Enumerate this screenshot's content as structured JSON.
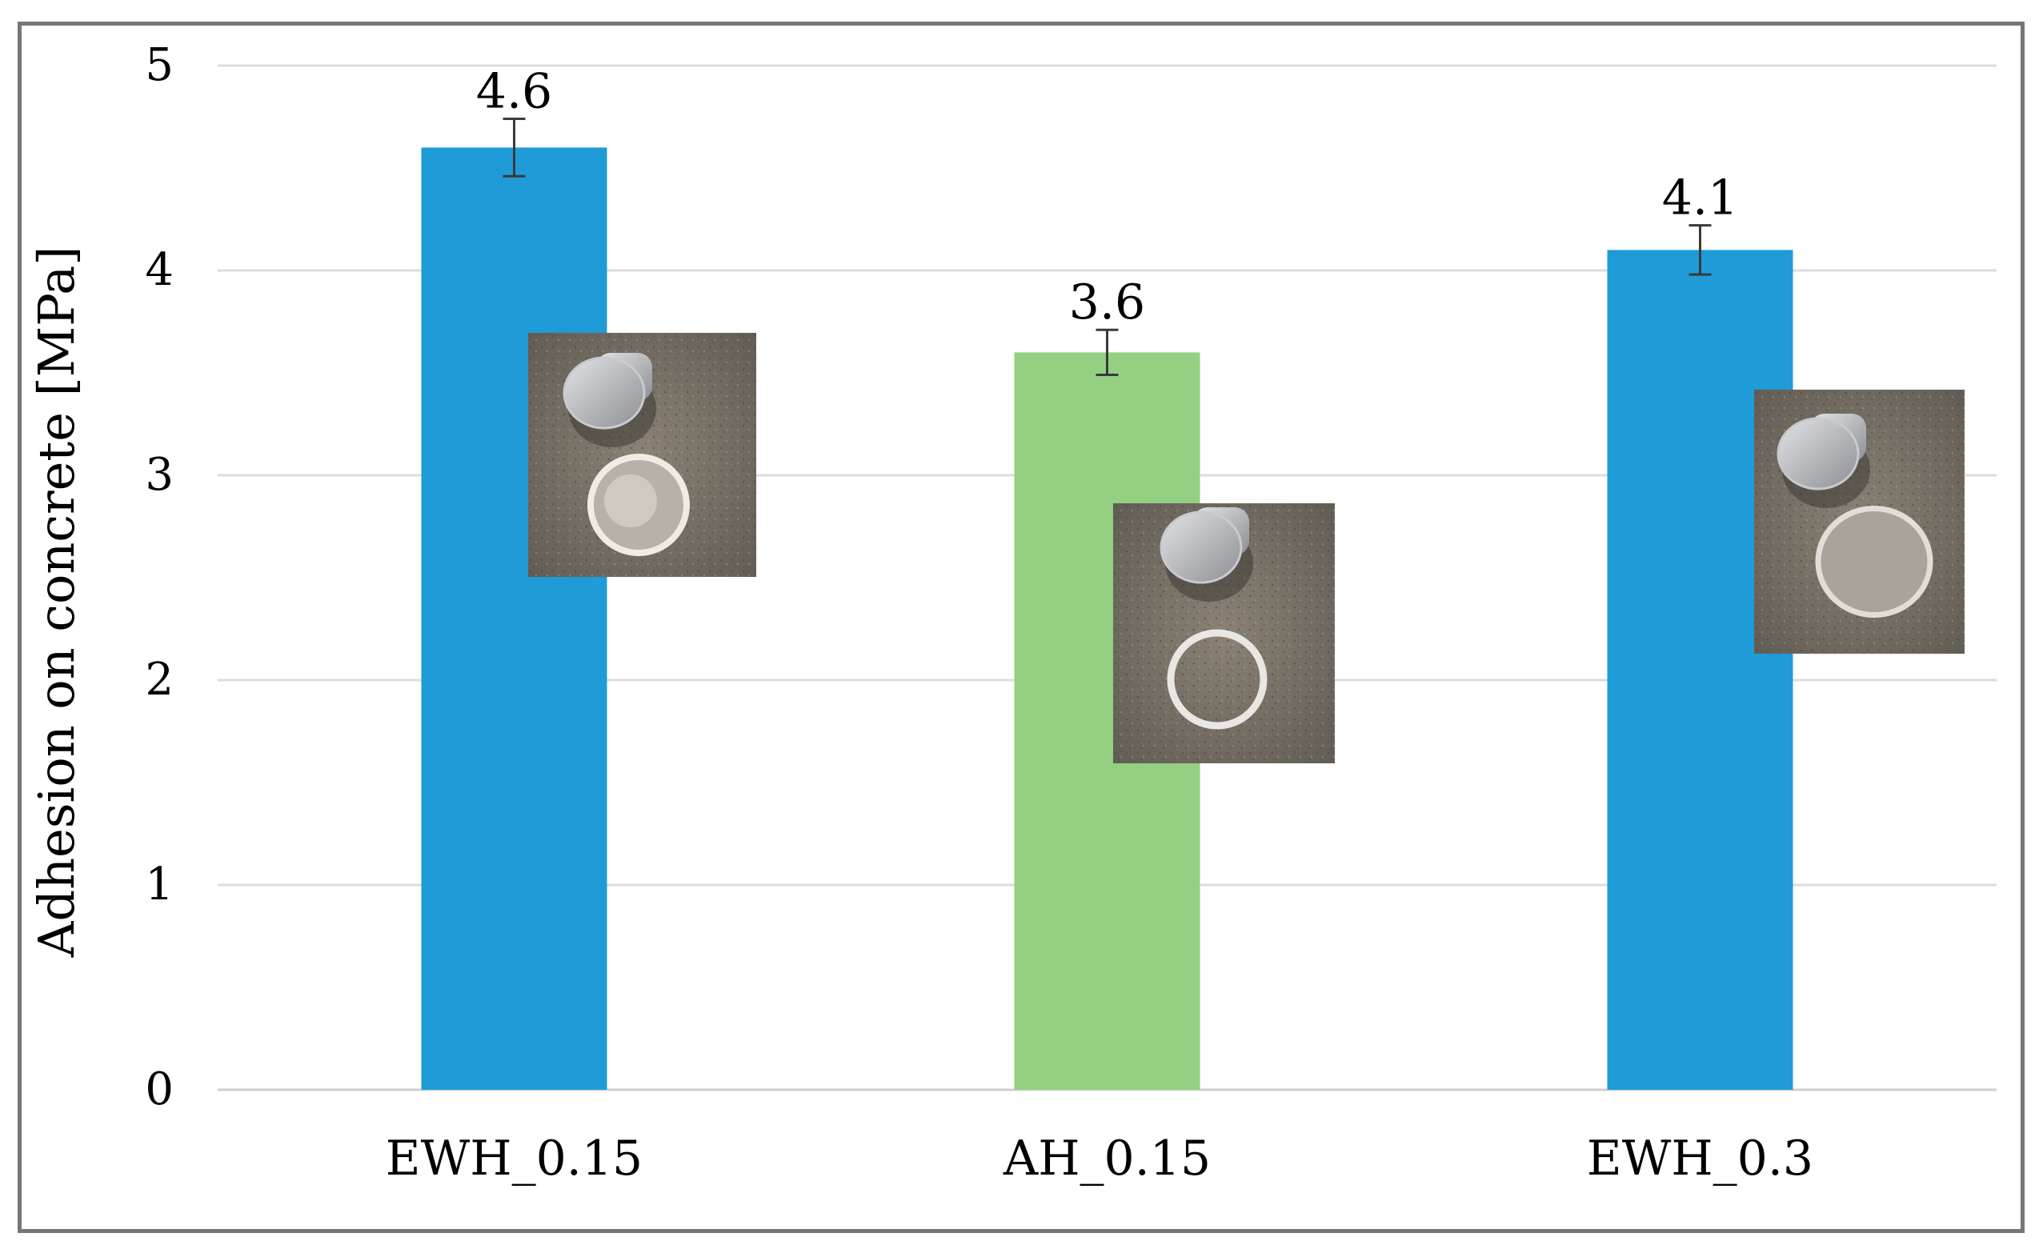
{
  "chart_data": {
    "type": "bar",
    "title": "",
    "xlabel": "",
    "ylabel": "Adhesion on concrete [MPa]",
    "ylim": [
      0,
      5
    ],
    "yticks": [
      0,
      1,
      2,
      3,
      4,
      5
    ],
    "grid": true,
    "legend": "none",
    "categories": [
      "EWH_0.15",
      "AH_0.15",
      "EWH_0.3"
    ],
    "values": [
      4.6,
      3.6,
      4.1
    ],
    "data_labels": [
      "4.6",
      "3.6",
      "4.1"
    ],
    "error_bars": [
      0.14,
      0.11,
      0.12
    ],
    "bar_colors": [
      "#1f9bd7",
      "#93d082",
      "#1f9bd7"
    ],
    "photo_insets": [
      "concrete pull-off test photo",
      "concrete pull-off test photo",
      "concrete pull-off test photo"
    ]
  }
}
